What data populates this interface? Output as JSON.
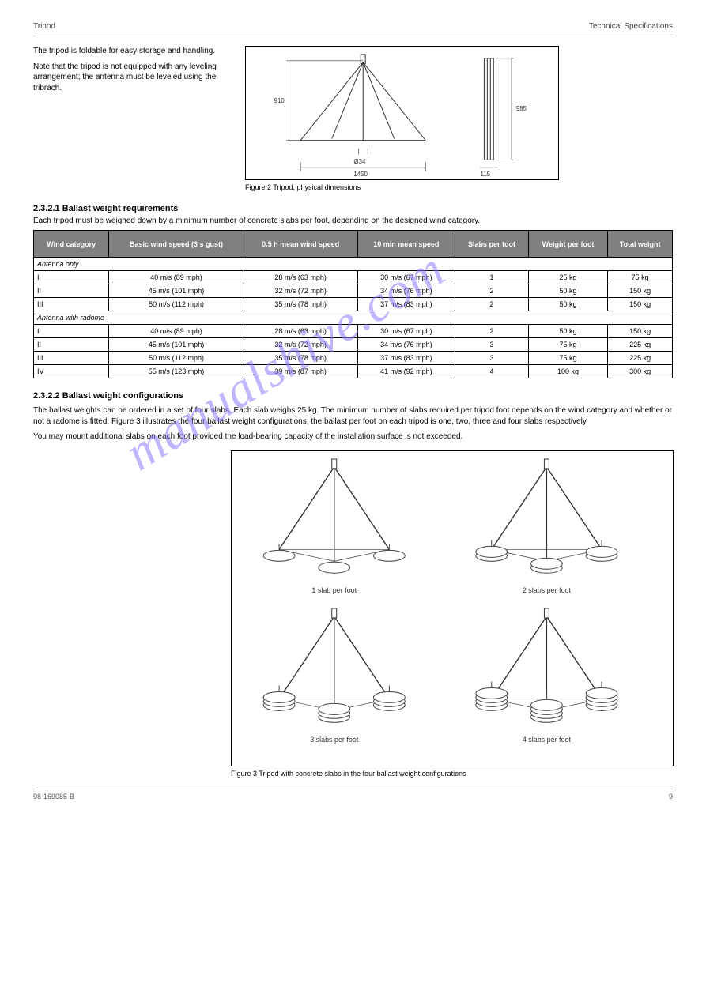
{
  "header": {
    "left": "Tripod",
    "right": "Technical Specifications"
  },
  "intro": {
    "p1": "The tripod is foldable for easy storage and handling.",
    "p2": "Note that the tripod is not equipped with any leveling arrangement; the antenna must be leveled using the tribrach."
  },
  "fig1": {
    "caption": "Figure 2   Tripod, physical dimensions",
    "dims": {
      "height": "910",
      "diameter": "Ø34",
      "footprint": "1450",
      "folded_w": "115",
      "folded_h": "985"
    }
  },
  "table": {
    "title": "2.3.2.1  Ballast weight requirements",
    "subtitle": "Each tripod must be weighed down by a minimum number of concrete slabs per foot, depending on the designed wind category.",
    "columns": [
      "Wind category",
      "Basic wind speed (3 s gust)",
      "0.5 h mean wind speed",
      "10 min mean speed",
      "Slabs per foot",
      "Weight per foot",
      "Total weight"
    ],
    "section1_label": "Antenna only",
    "section1_rows": [
      [
        "I",
        "40 m/s (89 mph)",
        "28 m/s (63 mph)",
        "30 m/s (67 mph)",
        "1",
        "25 kg",
        "75 kg"
      ],
      [
        "II",
        "45 m/s (101 mph)",
        "32 m/s (72 mph)",
        "34 m/s (76 mph)",
        "2",
        "50 kg",
        "150 kg"
      ],
      [
        "III",
        "50 m/s (112 mph)",
        "35 m/s (78 mph)",
        "37 m/s (83 mph)",
        "2",
        "50 kg",
        "150 kg"
      ]
    ],
    "section2_label": "Antenna with radome",
    "section2_rows": [
      [
        "I",
        "40 m/s (89 mph)",
        "28 m/s (63 mph)",
        "30 m/s (67 mph)",
        "2",
        "50 kg",
        "150 kg"
      ],
      [
        "II",
        "45 m/s (101 mph)",
        "32 m/s (72 mph)",
        "34 m/s (76 mph)",
        "3",
        "75 kg",
        "225 kg"
      ],
      [
        "III",
        "50 m/s (112 mph)",
        "35 m/s (78 mph)",
        "37 m/s (83 mph)",
        "3",
        "75 kg",
        "225 kg"
      ],
      [
        "IV",
        "55 m/s (123 mph)",
        "39 m/s (87 mph)",
        "41 m/s (92 mph)",
        "4",
        "100 kg",
        "300 kg"
      ]
    ],
    "colors": {
      "header_bg": "#808080",
      "header_fg": "#ffffff",
      "border": "#000000"
    }
  },
  "config": {
    "title": "2.3.2.2  Ballast weight configurations",
    "p1": "The ballast weights can be ordered in a set of four slabs. Each slab weighs 25 kg. The minimum number of slabs required per tripod foot depends on the wind category and whether or not a radome is fitted. Figure 3 illustrates the four ballast weight configurations; the ballast per foot on each tripod is one, two, three and four slabs respectively.",
    "p2": "You may mount additional slabs on each foot provided the load-bearing capacity of the installation surface is not exceeded."
  },
  "fig2": {
    "caption": "Figure 3   Tripod with concrete slabs in the four ballast weight configurations",
    "labels": [
      "1 slab per foot",
      "2 slabs per foot",
      "3 slabs per foot",
      "4 slabs per foot"
    ]
  },
  "footer": {
    "doc": "98-169085-B",
    "page": "9"
  },
  "watermark": "manualshive.com"
}
